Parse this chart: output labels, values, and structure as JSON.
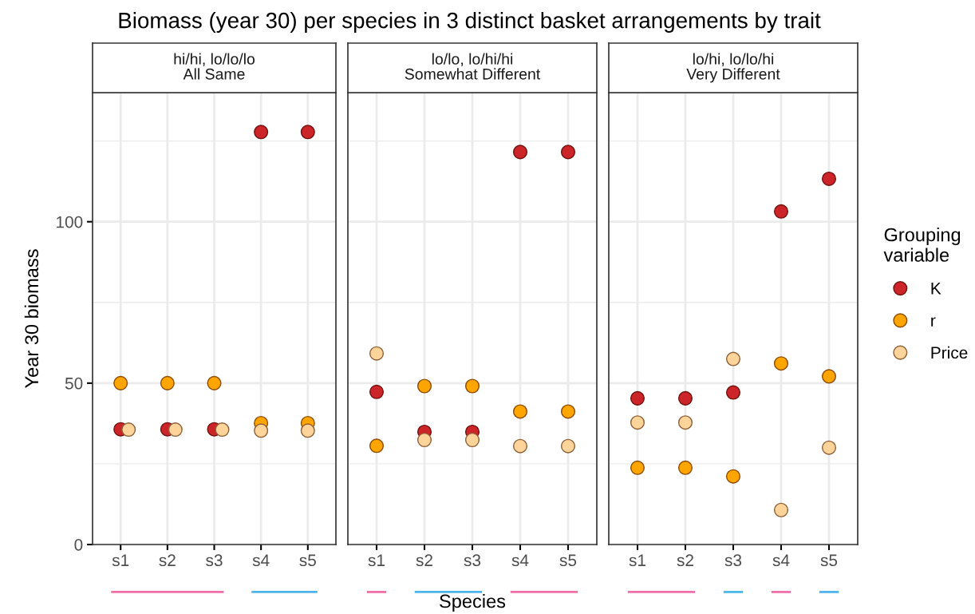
{
  "chart_data": [
    {
      "type": "scatter",
      "title": "Biomass (year 30) per species in 3 distinct basket arrangements by trait",
      "subtitle": "hi/hi, lo/lo/lo\nAll Same",
      "ylabel": "Year 30 biomass",
      "categories": [
        "s1",
        "s2",
        "s3",
        "s4",
        "s5"
      ],
      "ylim": [
        0,
        140
      ],
      "yticks": [
        0,
        50,
        100
      ],
      "grid": true,
      "marker": "circle",
      "series": [
        {
          "color": "#cc2529",
          "values": [
            35.7,
            35.7,
            35.7,
            127.8,
            127.8
          ]
        },
        {
          "color": "#ffa500",
          "values": [
            50,
            50,
            50,
            37.6,
            37.6
          ]
        },
        {
          "color": "#ffd49a",
          "values": [
            35.6,
            35.6,
            35.6,
            35.3,
            35.3
          ]
        }
      ]
    },
    {
      "type": "scatter",
      "subtitle": "lo/lo, lo/hi/hi\nSomewhat Different",
      "xlabel": "Species",
      "categories": [
        "s1",
        "s2",
        "s3",
        "s4",
        "s5"
      ],
      "ylim": [
        0,
        140
      ],
      "yticks": [
        0,
        50,
        100
      ],
      "tick_labels": "x",
      "grid": true,
      "marker": "circle",
      "series": [
        {
          "color": "#cc2529",
          "values": [
            47.3,
            34.9,
            34.9,
            121.6,
            121.6
          ]
        },
        {
          "color": "#ffa500",
          "values": [
            30.6,
            49.1,
            49.1,
            41.2,
            41.2
          ]
        },
        {
          "color": "#ffd49a",
          "values": [
            59.2,
            32.4,
            32.4,
            30.5,
            30.5
          ]
        }
      ]
    },
    {
      "type": "scatter",
      "subtitle": "lo/hi, lo/lo/hi\nVery Different",
      "legend_title": "Grouping\nvariable",
      "categories": [
        "s1",
        "s2",
        "s3",
        "s4",
        "s5"
      ],
      "ylim": [
        0,
        140
      ],
      "yticks": [
        0,
        50,
        100
      ],
      "tick_labels": "x",
      "grid": true,
      "marker": "circle",
      "legend": "right",
      "series": [
        {
          "name": "K",
          "color": "#cc2529",
          "values": [
            45.3,
            45.3,
            47.1,
            103.2,
            113.3
          ]
        },
        {
          "name": "r",
          "color": "#ffa500",
          "values": [
            23.8,
            23.8,
            21.1,
            56.1,
            52.1
          ]
        },
        {
          "name": "Price",
          "color": "#ffd49a",
          "values": [
            37.8,
            37.8,
            57.5,
            10.7,
            30.0
          ]
        }
      ]
    }
  ]
}
